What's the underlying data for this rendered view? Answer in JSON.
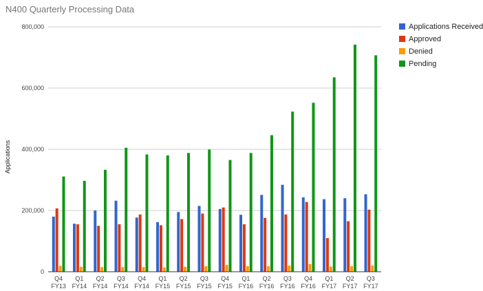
{
  "chart_data": {
    "type": "bar",
    "title": "N400 Quarterly Processing Data",
    "xlabel": "",
    "ylabel": "Applications",
    "ylim": [
      0,
      800000
    ],
    "yticks": [
      0,
      200000,
      400000,
      600000,
      800000
    ],
    "ytick_labels": [
      "0",
      "200,000",
      "400,000",
      "600,000",
      "800,000"
    ],
    "grid": true,
    "legend_position": "right",
    "categories": [
      [
        "Q4",
        "FY13"
      ],
      [
        "Q1",
        "FY14"
      ],
      [
        "Q2",
        "FY14"
      ],
      [
        "Q3",
        "FY14"
      ],
      [
        "Q4",
        "FY14"
      ],
      [
        "Q1",
        "FY15"
      ],
      [
        "Q2",
        "FY15"
      ],
      [
        "Q3",
        "FY15"
      ],
      [
        "Q4",
        "FY15"
      ],
      [
        "Q1",
        "FY16"
      ],
      [
        "Q2",
        "FY16"
      ],
      [
        "Q3",
        "FY16"
      ],
      [
        "Q4",
        "FY16"
      ],
      [
        "Q1",
        "FY17"
      ],
      [
        "Q2",
        "FY17"
      ],
      [
        "Q3",
        "FY17"
      ]
    ],
    "series": [
      {
        "name": "Applications Received",
        "color": "#3366cc",
        "values": [
          180000,
          157000,
          200000,
          232000,
          177000,
          162000,
          195000,
          215000,
          205000,
          186000,
          251000,
          284000,
          243000,
          237000,
          240000,
          253000
        ]
      },
      {
        "name": "Approved",
        "color": "#dc3912",
        "values": [
          207000,
          155000,
          150000,
          155000,
          187000,
          152000,
          172000,
          190000,
          210000,
          155000,
          176000,
          187000,
          228000,
          110000,
          165000,
          203000
        ]
      },
      {
        "name": "Denied",
        "color": "#ff9900",
        "values": [
          19000,
          16000,
          15000,
          15000,
          15000,
          14000,
          16000,
          18000,
          22000,
          18000,
          18000,
          20000,
          25000,
          17000,
          18000,
          20000
        ]
      },
      {
        "name": "Pending",
        "color": "#109618",
        "values": [
          311000,
          297000,
          333000,
          405000,
          383000,
          380000,
          388000,
          399000,
          365000,
          388000,
          446000,
          523000,
          552000,
          635000,
          742000,
          707000
        ]
      }
    ]
  }
}
